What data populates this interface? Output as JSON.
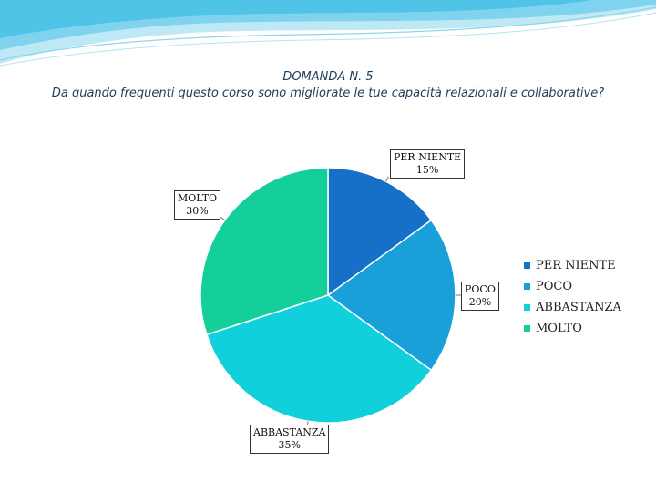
{
  "colors": {
    "per_niente": "#1670c8",
    "poco": "#1aa0d8",
    "abbastanza": "#10d0dc",
    "molto": "#14cf9a",
    "header": "#4fc4e6"
  },
  "chart_data": {
    "type": "pie",
    "title": "DOMANDA N. 5",
    "subtitle": "Da quando frequenti questo corso sono migliorate le tue capacità relazionali e collaborative?",
    "legend_position": "right",
    "slices": [
      {
        "label": "PER NIENTE",
        "value": 15,
        "value_label": "15%",
        "color": "#1670c8"
      },
      {
        "label": "POCO",
        "value": 20,
        "value_label": "20%",
        "color": "#1aa0d8"
      },
      {
        "label": "ABBASTANZA",
        "value": 35,
        "value_label": "35%",
        "color": "#10d0dc"
      },
      {
        "label": "MOLTO",
        "value": 30,
        "value_label": "30%",
        "color": "#14cf9a"
      }
    ]
  }
}
